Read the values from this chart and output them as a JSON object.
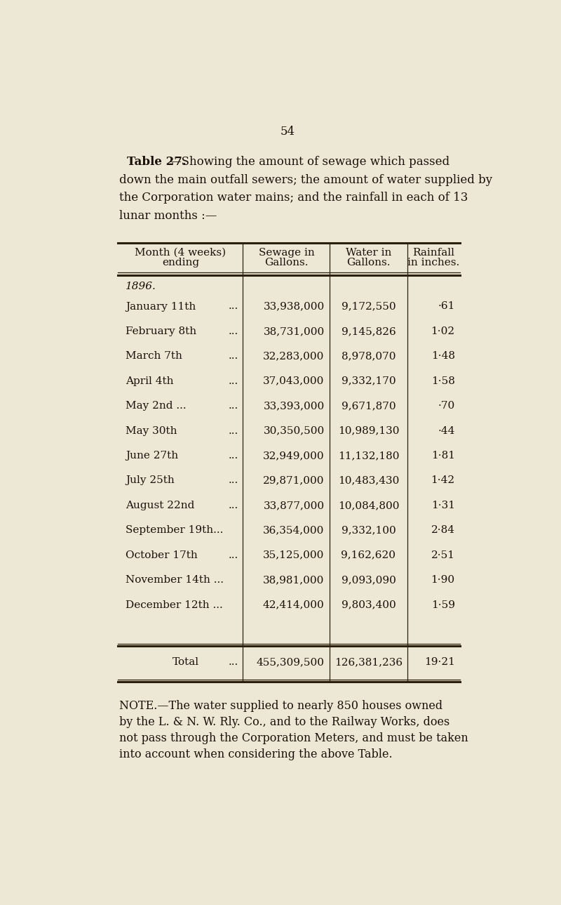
{
  "page_number": "54",
  "title_smallcaps": "Table 27.",
  "title_rest_line1": "—Showing the amount of sewage which passed",
  "title_line2": "down the main outfall sewers; the amount of water supplied by",
  "title_line3": "the Corporation water mains; and the rainfall in each of 13",
  "title_line4": "lunar months :—",
  "col_headers": [
    [
      "Month (4 weeks)",
      "ending"
    ],
    [
      "Sewage in",
      "Gallons."
    ],
    [
      "Water in",
      "Gallons."
    ],
    [
      "Rainfall",
      "in inches."
    ]
  ],
  "year_label": "1896.",
  "rows": [
    [
      "January 11th",
      "...",
      "33,938,000",
      "9,172,550",
      "·61"
    ],
    [
      "February 8th",
      "...",
      "38,731,000",
      "9,145,826",
      "1·02"
    ],
    [
      "March 7th",
      "...",
      "32,283,000",
      "8,978,070",
      "1·48"
    ],
    [
      "April 4th",
      "...",
      "37,043,000",
      "9,332,170",
      "1·58"
    ],
    [
      "May 2nd ...",
      "...",
      "33,393,000",
      "9,671,870",
      "·70"
    ],
    [
      "May 30th",
      "...",
      "30,350,500",
      "10,989,130",
      "·44"
    ],
    [
      "June 27th",
      "...",
      "32,949,000",
      "11,132,180",
      "1·81"
    ],
    [
      "July 25th",
      "...",
      "29,871,000",
      "10,483,430",
      "1·42"
    ],
    [
      "August 22nd",
      "...",
      "33,877,000",
      "10,084,800",
      "1·31"
    ],
    [
      "September 19th...",
      "",
      "36,354,000",
      "9,332,100",
      "2·84"
    ],
    [
      "October 17th",
      "...",
      "35,125,000",
      "9,162,620",
      "2·51"
    ],
    [
      "November 14th ...",
      "",
      "38,981,000",
      "9,093,090",
      "1·90"
    ],
    [
      "December 12th ...",
      "",
      "42,414,000",
      "9,803,400",
      "1·59"
    ]
  ],
  "total_label": "Total",
  "total_dots": "...",
  "total_sewage": "455,309,500",
  "total_water": "126,381,236",
  "total_rainfall": "19·21",
  "note_lines": [
    "NOTE.—The water supplied to nearly 850 houses owned",
    "by the L. & N. W. Rly. Co., and to the Railway Works, does",
    "not pass through the Corporation Meters, and must be taken",
    "into account when considering the above Table."
  ],
  "bg_color": "#ede8d5",
  "text_color": "#1a1008",
  "line_color": "#2a1f0a"
}
